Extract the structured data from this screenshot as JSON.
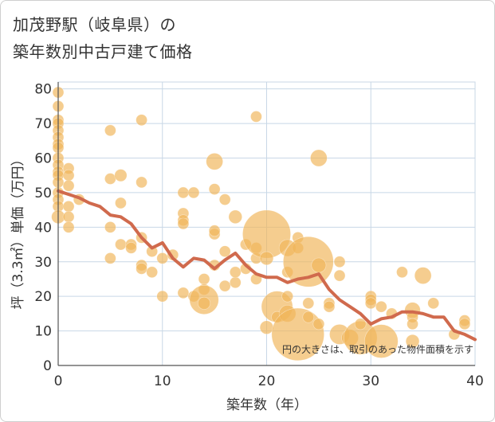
{
  "title_line1": "加茂野駅（岐阜県）の",
  "title_line2": "築年数別中古戸建て価格",
  "note": "円の大きさは、取引のあった物件面積を示す",
  "chart_data": {
    "type": "scatter",
    "xlabel": "築年数（年）",
    "ylabel": "坪（3.3㎡）単価（万円）",
    "xlim": [
      0,
      40
    ],
    "ylim": [
      0,
      82
    ],
    "xticks": [
      0,
      10,
      20,
      30,
      40
    ],
    "yticks": [
      0,
      10,
      20,
      30,
      40,
      50,
      60,
      70,
      80
    ],
    "grid": true,
    "colors": {
      "bubble": "#f0b65a",
      "line": "#d06a4d",
      "grid": "#c8d7e6"
    },
    "bubbles": [
      [
        0,
        79,
        1
      ],
      [
        0,
        75,
        1
      ],
      [
        0,
        71,
        1
      ],
      [
        0,
        70,
        1
      ],
      [
        0,
        68,
        1
      ],
      [
        0,
        66,
        1
      ],
      [
        0,
        64,
        1
      ],
      [
        0,
        63,
        1
      ],
      [
        0,
        60,
        1
      ],
      [
        0,
        58,
        1
      ],
      [
        0,
        56,
        1
      ],
      [
        0,
        55,
        1
      ],
      [
        0,
        53,
        1
      ],
      [
        0,
        50,
        1
      ],
      [
        0,
        48,
        1
      ],
      [
        0,
        46,
        1
      ],
      [
        0,
        43,
        1.2
      ],
      [
        1,
        57,
        1
      ],
      [
        1,
        55,
        1
      ],
      [
        1,
        52,
        1
      ],
      [
        1,
        46,
        1
      ],
      [
        1,
        43,
        1
      ],
      [
        1,
        40,
        1
      ],
      [
        2,
        48,
        1
      ],
      [
        5,
        68,
        1
      ],
      [
        5,
        54,
        1
      ],
      [
        5,
        40,
        1
      ],
      [
        5,
        31,
        1
      ],
      [
        6,
        55,
        1.1
      ],
      [
        6,
        47,
        1
      ],
      [
        6,
        35,
        1
      ],
      [
        7,
        35,
        1
      ],
      [
        7,
        34,
        1
      ],
      [
        8,
        71,
        1
      ],
      [
        8,
        53,
        1
      ],
      [
        8,
        37,
        1
      ],
      [
        8,
        29,
        1
      ],
      [
        8,
        28,
        1
      ],
      [
        9,
        33,
        1
      ],
      [
        9,
        27,
        1
      ],
      [
        10,
        31,
        1
      ],
      [
        10,
        20,
        1
      ],
      [
        11,
        32,
        1
      ],
      [
        12,
        50,
        1
      ],
      [
        12,
        44,
        1
      ],
      [
        12,
        42,
        1
      ],
      [
        12,
        41,
        1
      ],
      [
        12,
        21,
        1
      ],
      [
        13,
        50,
        1
      ],
      [
        13,
        20,
        1
      ],
      [
        14,
        25,
        1
      ],
      [
        14,
        22,
        1
      ],
      [
        14,
        19,
        2.6
      ],
      [
        14,
        18,
        1.1
      ],
      [
        15,
        59,
        1.5
      ],
      [
        15,
        51,
        1
      ],
      [
        15,
        38,
        1
      ],
      [
        15,
        39,
        1
      ],
      [
        15,
        29,
        1
      ],
      [
        16,
        48,
        1
      ],
      [
        16,
        33,
        1
      ],
      [
        16,
        23,
        1
      ],
      [
        17,
        43,
        1.2
      ],
      [
        17,
        24,
        1
      ],
      [
        17,
        27,
        1
      ],
      [
        18,
        35,
        1
      ],
      [
        18,
        28,
        1
      ],
      [
        19,
        72,
        1
      ],
      [
        19,
        34,
        1
      ],
      [
        19,
        31,
        1
      ],
      [
        19,
        25,
        1
      ],
      [
        20,
        38,
        4.3
      ],
      [
        20,
        31,
        1.2
      ],
      [
        20,
        11,
        1.2
      ],
      [
        21,
        17,
        2.8
      ],
      [
        21,
        14,
        1
      ],
      [
        22,
        34,
        1.5
      ],
      [
        22,
        27,
        1
      ],
      [
        22,
        20,
        1
      ],
      [
        22,
        15,
        1.5
      ],
      [
        23,
        37,
        1
      ],
      [
        23,
        34,
        1
      ],
      [
        23,
        9,
        4.7
      ],
      [
        24,
        30,
        4.5
      ],
      [
        24,
        18,
        1
      ],
      [
        24,
        14,
        1
      ],
      [
        25,
        60,
        1.5
      ],
      [
        25,
        29,
        1.3
      ],
      [
        25,
        12,
        1
      ],
      [
        26,
        18,
        1
      ],
      [
        26,
        17,
        1
      ],
      [
        27,
        30,
        1
      ],
      [
        27,
        26,
        1
      ],
      [
        27,
        9,
        1.8
      ],
      [
        28,
        8,
        1.5
      ],
      [
        29,
        8,
        3
      ],
      [
        29,
        12,
        1
      ],
      [
        30,
        20,
        1
      ],
      [
        30,
        19,
        1
      ],
      [
        30,
        18,
        1
      ],
      [
        31,
        7,
        3
      ],
      [
        31,
        17,
        1
      ],
      [
        32,
        15,
        1
      ],
      [
        33,
        27,
        1
      ],
      [
        34,
        16,
        1.4
      ],
      [
        34,
        14,
        1
      ],
      [
        34,
        12,
        1
      ],
      [
        34,
        7,
        1.2
      ],
      [
        35,
        26,
        1.5
      ],
      [
        36,
        18,
        1
      ],
      [
        38,
        9,
        1
      ],
      [
        39,
        13,
        1
      ],
      [
        39,
        12,
        1
      ]
    ],
    "avg_line": {
      "x": [
        0,
        1,
        2,
        3,
        4,
        5,
        6,
        7,
        8,
        9,
        10,
        11,
        12,
        13,
        14,
        15,
        16,
        17,
        18,
        19,
        20,
        21,
        22,
        23,
        24,
        25,
        26,
        27,
        28,
        29,
        30,
        31,
        32,
        33,
        34,
        35,
        36,
        37,
        38,
        39,
        40
      ],
      "y": [
        50.5,
        49.5,
        48.5,
        47,
        46,
        43.5,
        43,
        41,
        37,
        34,
        35.5,
        31,
        28.5,
        31,
        30.5,
        28,
        30.5,
        32.5,
        29,
        26.5,
        25.5,
        25.5,
        24,
        25,
        25.5,
        26.5,
        22,
        19,
        17,
        15,
        12,
        13.5,
        14,
        15.5,
        15.5,
        15,
        14,
        14,
        10,
        9,
        7.5
      ]
    }
  }
}
